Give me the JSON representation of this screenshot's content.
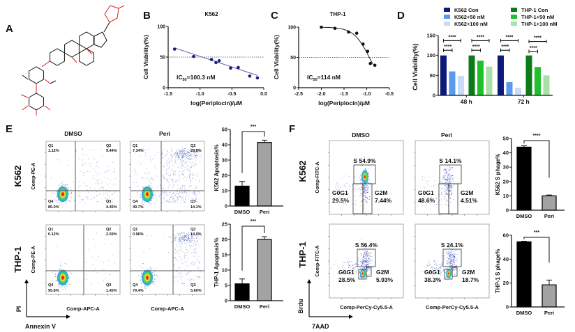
{
  "panel_labels": [
    "A",
    "B",
    "C",
    "D",
    "E",
    "F"
  ],
  "structure": {
    "bond_color": "#111111",
    "heteroatom_color": "#e02020"
  },
  "chart_data": [
    {
      "panel": "B",
      "type": "scatter",
      "title": "K562",
      "xlabel": "log(Periplocin)/µM",
      "ylabel": "Cell Viability(%)",
      "xlim": [
        -1.5,
        0
      ],
      "ylim": [
        0,
        100
      ],
      "xticks": [
        -1.5,
        -1.0,
        -0.5,
        0.0
      ],
      "xtick_labels": [
        "-1.5",
        "-1.0",
        "-0.5",
        "0.0"
      ],
      "yticks": [
        0,
        50,
        100
      ],
      "ytick_labels": [
        "0",
        "50",
        "100"
      ],
      "reference_line": 50,
      "points": {
        "x": [
          -1.4,
          -1.1,
          -0.82,
          -0.75,
          -0.7,
          -0.52,
          -0.4,
          -0.22,
          -0.1
        ],
        "y": [
          63,
          51,
          46,
          41,
          44,
          32,
          33,
          19,
          16
        ]
      },
      "fit": {
        "type": "linear",
        "x": [
          -1.4,
          -0.1
        ],
        "y": [
          65,
          20
        ]
      },
      "annotation": {
        "prefix": "IC",
        "sub": "50",
        "suffix": "=100.3 nM"
      },
      "marker_color": "#1c1c78",
      "line_color": "#5a5aa8"
    },
    {
      "panel": "C",
      "type": "scatter",
      "title": "THP-1",
      "xlabel": "log(Periplocin)/µM",
      "ylabel": "Cell Viability(%)",
      "xlim": [
        -2.5,
        -0.5
      ],
      "ylim": [
        0,
        100
      ],
      "xticks": [
        -2.5,
        -2.0,
        -1.5,
        -1.0,
        -0.5
      ],
      "xtick_labels": [
        "-2.5",
        "-2.0",
        "-1.5",
        "-1.0",
        "-0.5"
      ],
      "yticks": [
        0,
        50,
        100
      ],
      "ytick_labels": [
        "0",
        "50",
        "100"
      ],
      "reference_line": 50,
      "points": {
        "x": [
          -2.0,
          -1.7,
          -1.4,
          -1.22,
          -1.08,
          -0.98,
          -0.92,
          -0.82
        ],
        "y": [
          100,
          98,
          92,
          90,
          72,
          60,
          40,
          37
        ]
      },
      "fit": {
        "type": "logistic",
        "top": 100,
        "bottom": 0,
        "log_ic50": -0.943,
        "hill": 2.5,
        "x_range": [
          -2.0,
          -0.85
        ]
      },
      "annotation": {
        "prefix": "IC",
        "sub": "50",
        "suffix": "=114 nM"
      },
      "marker_color": "#111111",
      "line_color": "#222222"
    },
    {
      "panel": "D",
      "type": "bar",
      "ylabel": "Cell Viability(%)",
      "categories": [
        "48 h",
        "72 h"
      ],
      "ylim": [
        0,
        150
      ],
      "yticks": [
        0,
        50,
        100,
        150
      ],
      "ytick_labels": [
        "0",
        "50",
        "100",
        "150"
      ],
      "series": [
        {
          "name": "K562 Con",
          "color": "#0d1a7a",
          "values": [
            100,
            100
          ]
        },
        {
          "name": "K562+50 nM",
          "color": "#5b9af0",
          "values": [
            60,
            33
          ]
        },
        {
          "name": "K562+100 nM",
          "color": "#c7dcf7",
          "values": [
            49,
            19
          ]
        },
        {
          "name": "THP-1 Con",
          "color": "#0f7a1a",
          "values": [
            100,
            100
          ]
        },
        {
          "name": "THP-1+50 nM",
          "color": "#1fc02c",
          "values": [
            87,
            71
          ]
        },
        {
          "name": "THP-1+100 nM",
          "color": "#a8e0a8",
          "values": [
            72,
            50
          ]
        }
      ],
      "legend_position": "top",
      "significance": [
        {
          "category": 0,
          "from": 0,
          "to": 1,
          "y": 113,
          "label": "****"
        },
        {
          "category": 0,
          "from": 0,
          "to": 2,
          "y": 137,
          "label": "****"
        },
        {
          "category": 0,
          "from": 3,
          "to": 4,
          "y": 113,
          "label": "****"
        },
        {
          "category": 0,
          "from": 3,
          "to": 5,
          "y": 137,
          "label": "****"
        },
        {
          "category": 1,
          "from": 0,
          "to": 1,
          "y": 113,
          "label": "****"
        },
        {
          "category": 1,
          "from": 0,
          "to": 2,
          "y": 137,
          "label": "****"
        },
        {
          "category": 1,
          "from": 3,
          "to": 4,
          "y": 110,
          "label": "****"
        },
        {
          "category": 1,
          "from": 3,
          "to": 5,
          "y": 135,
          "label": "****"
        }
      ]
    },
    {
      "panel": "E",
      "type": "bar",
      "ylabel": "K562 Apoptosis%",
      "categories": [
        "DMSO",
        "Peri"
      ],
      "values": [
        13,
        41.5
      ],
      "errors": [
        3,
        1.5
      ],
      "colors": [
        "#000000",
        "#a3a3a3"
      ],
      "ylim": [
        0,
        50
      ],
      "yticks": [
        0,
        10,
        20,
        30,
        40,
        50
      ],
      "ytick_labels": [
        "0",
        "10",
        "20",
        "30",
        "40",
        "50"
      ],
      "significance": "***"
    },
    {
      "panel": "E",
      "type": "bar",
      "ylabel": "THP-1 Apoptosis%",
      "categories": [
        "DMSO",
        "Peri"
      ],
      "values": [
        5.5,
        20
      ],
      "errors": [
        1.6,
        0.9
      ],
      "colors": [
        "#000000",
        "#a3a3a3"
      ],
      "ylim": [
        0,
        25
      ],
      "yticks": [
        0,
        5,
        10,
        15,
        20,
        25
      ],
      "ytick_labels": [
        "0",
        "5",
        "10",
        "15",
        "20",
        "25"
      ],
      "significance": "***"
    },
    {
      "panel": "F",
      "type": "bar",
      "ylabel": "K562 S phage%",
      "categories": [
        "DMSO",
        "Peri"
      ],
      "values": [
        44,
        10
      ],
      "errors": [
        1,
        0.6
      ],
      "colors": [
        "#000000",
        "#a3a3a3"
      ],
      "ylim": [
        0,
        50
      ],
      "yticks": [
        0,
        10,
        20,
        30,
        40,
        50
      ],
      "ytick_labels": [
        "0",
        "10",
        "20",
        "30",
        "40",
        "50"
      ],
      "significance": "****"
    },
    {
      "panel": "F",
      "type": "bar",
      "ylabel": "THP-1 S phage%",
      "categories": [
        "DMSO",
        "Peri"
      ],
      "values": [
        54.5,
        18.5
      ],
      "errors": [
        0.5,
        4
      ],
      "colors": [
        "#000000",
        "#a3a3a3"
      ],
      "ylim": [
        0,
        60
      ],
      "yticks": [
        0,
        20,
        40,
        60
      ],
      "ytick_labels": [
        "0",
        "20",
        "40",
        "60"
      ],
      "significance": "***"
    }
  ],
  "flow": {
    "E": {
      "columns": [
        "DMSO",
        "Peri"
      ],
      "rows": [
        "K562",
        "THP-1"
      ],
      "y_channel": "Comp-PE-A",
      "x_channel": "Comp-APC-A",
      "y_axis_marker": "PI",
      "x_axis_marker": "Annexin V",
      "plots": [
        {
          "row": 0,
          "col": 0,
          "quadrants": {
            "Q1": "1.12%",
            "Q2": "9.44%",
            "Q3": "4.45%",
            "Q4": "85.0%"
          }
        },
        {
          "row": 0,
          "col": 1,
          "quadrants": {
            "Q1": "7.34%",
            "Q2": "28.8%",
            "Q3": "14.1%",
            "Q4": "49.7%"
          }
        },
        {
          "row": 1,
          "col": 0,
          "quadrants": {
            "Q1": "0.12%",
            "Q2": "2.59%",
            "Q3": "1.45%",
            "Q4": "95.8%"
          }
        },
        {
          "row": 1,
          "col": 1,
          "quadrants": {
            "Q1": "0.96%",
            "Q2": "14.0%",
            "Q3": "5.60%",
            "Q4": "79.4%"
          }
        }
      ]
    },
    "F": {
      "columns": [
        "DMSO",
        "Peri"
      ],
      "rows": [
        "K562",
        "THP-1"
      ],
      "y_channel": "Comp-FITC-A",
      "x_channel": "Comp-PerCy-Cy5.5-A",
      "y_axis_marker": "Brdu",
      "x_axis_marker": "7AAD",
      "plots": [
        {
          "row": 0,
          "col": 0,
          "gates": {
            "S": "S 54.9%",
            "G0G1": "G0G1",
            "G0G1_pct": "29.5%",
            "G2M": "G2M",
            "G2M_pct": "7.44%"
          }
        },
        {
          "row": 0,
          "col": 1,
          "gates": {
            "S": "S 14.1%",
            "G0G1": "G0G1",
            "G0G1_pct": "48.6%",
            "G2M": "G2M",
            "G2M_pct": "4.51%"
          }
        },
        {
          "row": 1,
          "col": 0,
          "gates": {
            "S": "S 56.4%",
            "G0G1": "G0G1",
            "G0G1_pct": "28.5%",
            "G2M": "G2M",
            "G2M_pct": "5.93%"
          }
        },
        {
          "row": 1,
          "col": 1,
          "gates": {
            "S": "S 24.1%",
            "G0G1": "G0G1",
            "G0G1_pct": "38.3%",
            "G2M": "G2M",
            "G2M_pct": "18.7%"
          }
        }
      ]
    },
    "event_color": "#3a4fb8"
  }
}
